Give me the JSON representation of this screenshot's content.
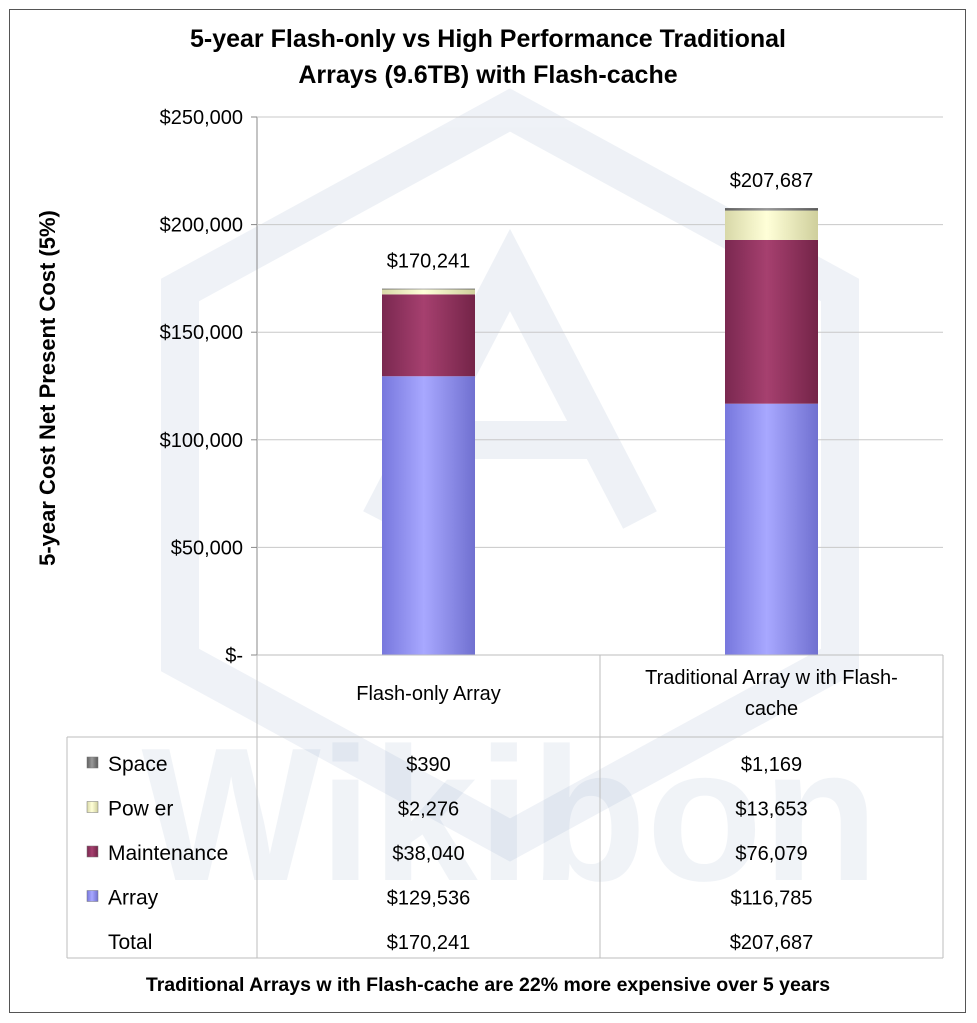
{
  "chart_data": {
    "type": "bar",
    "stacked": true,
    "title_lines": [
      "5-year Flash-only vs High Performance Traditional",
      "Arrays (9.6TB) with Flash-cache"
    ],
    "ylabel": "5-year Cost Net Present Cost (5%)",
    "xlabel": "",
    "ylim": [
      0,
      250000
    ],
    "y_ticks": [
      0,
      50000,
      100000,
      150000,
      200000,
      250000
    ],
    "y_tick_labels": [
      "$-",
      "$50,000",
      "$100,000",
      "$150,000",
      "$200,000",
      "$250,000"
    ],
    "grid": true,
    "categories": [
      {
        "lines": [
          "Flash-only Array"
        ]
      },
      {
        "lines": [
          "Traditional Array w ith Flash-",
          "cache"
        ]
      }
    ],
    "series": [
      {
        "name": "Array",
        "color": "#9999ff",
        "values": [
          129536,
          116785
        ],
        "value_labels": [
          "$129,536",
          "$116,785"
        ]
      },
      {
        "name": "Maintenance",
        "color": "#993366",
        "values": [
          38040,
          76079
        ],
        "value_labels": [
          "$38,040",
          "$76,079"
        ]
      },
      {
        "name": "Pow er",
        "color": "#ffffcc",
        "values": [
          2276,
          13653
        ],
        "value_labels": [
          "$2,276",
          "$13,653"
        ]
      },
      {
        "name": "Space",
        "color": "#808080",
        "values": [
          390,
          1169
        ],
        "value_labels": [
          "$390",
          "$1,169"
        ]
      }
    ],
    "totals": [
      170241,
      207687
    ],
    "total_labels": [
      "$170,241",
      "$207,687"
    ],
    "table_total_label": "Total",
    "legend_order": [
      "Space",
      "Pow er",
      "Maintenance",
      "Array"
    ]
  },
  "footer": "Traditional Arrays w ith Flash-cache are 22% more expensive over 5 years",
  "watermark": "Wikibon"
}
